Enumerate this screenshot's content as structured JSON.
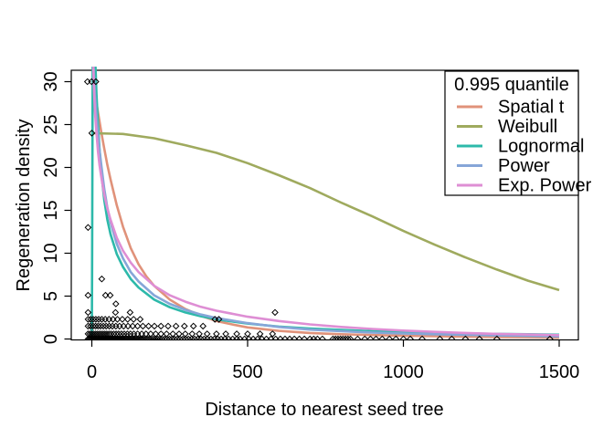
{
  "chart_data": {
    "type": "line",
    "title": "",
    "xlabel": "Distance to nearest seed tree",
    "ylabel": "Regeneration density",
    "xlim": [
      -70,
      1560
    ],
    "ylim": [
      0,
      31.3
    ],
    "x_ticks": [
      "0",
      "500",
      "1000",
      "1500"
    ],
    "y_ticks": [
      "0",
      "5",
      "10",
      "15",
      "20",
      "25",
      "30"
    ],
    "grid": "off",
    "legend": {
      "title": "0.995 quantile",
      "position": "top-right"
    },
    "series": [
      {
        "name": "Spatial t",
        "color": "#E0927A",
        "x": [
          2,
          10,
          20,
          30,
          40,
          50,
          60,
          80,
          100,
          125,
          150,
          175,
          200,
          250,
          300,
          350,
          400,
          450,
          500,
          600,
          700,
          800,
          900,
          1000,
          1100,
          1200,
          1300,
          1400,
          1500
        ],
        "y": [
          30.4,
          28.6,
          26.4,
          24.2,
          22.2,
          20.3,
          18.6,
          15.6,
          13.1,
          10.6,
          8.7,
          7.3,
          6.2,
          4.6,
          3.5,
          2.7,
          2.1,
          1.7,
          1.35,
          0.95,
          0.7,
          0.55,
          0.46,
          0.38,
          0.32,
          0.27,
          0.23,
          0.2,
          0.17
        ]
      },
      {
        "name": "Weibull",
        "color": "#9FAA5E",
        "x": [
          0,
          100,
          200,
          300,
          400,
          500,
          600,
          700,
          800,
          900,
          1000,
          1100,
          1200,
          1300,
          1400,
          1500
        ],
        "y": [
          24,
          23.9,
          23.4,
          22.6,
          21.7,
          20.5,
          19.1,
          17.6,
          15.9,
          14.3,
          12.6,
          11.0,
          9.5,
          8.1,
          6.8,
          5.7
        ]
      },
      {
        "name": "Lognormal",
        "color": "#2DB9AA",
        "x": [
          0,
          1,
          3,
          8,
          12,
          15,
          20,
          25,
          30,
          40,
          50,
          60,
          80,
          100,
          125,
          150,
          200,
          250,
          300,
          350,
          400,
          500,
          600,
          700,
          800,
          900,
          1000,
          1100,
          1200,
          1300,
          1400,
          1500
        ],
        "y": [
          0,
          8,
          34,
          34.5,
          31.5,
          28.5,
          25,
          22,
          19.6,
          16.2,
          13.9,
          12.2,
          9.9,
          8.4,
          7.0,
          6.0,
          4.6,
          3.7,
          3.1,
          2.65,
          2.3,
          1.8,
          1.45,
          1.22,
          1.05,
          0.92,
          0.8,
          0.72,
          0.65,
          0.6,
          0.55,
          0.5
        ]
      },
      {
        "name": "Power",
        "color": "#86A6D8",
        "x": [
          1,
          3,
          6,
          10,
          15,
          20,
          25,
          30,
          40,
          50,
          60,
          80,
          100,
          125,
          150,
          200,
          250,
          300,
          350,
          400,
          500,
          600,
          700,
          800,
          900,
          1000,
          1100,
          1200,
          1300,
          1400,
          1500
        ],
        "y": [
          40,
          35,
          31.5,
          28.5,
          26,
          23.8,
          22,
          20.4,
          17.5,
          15.3,
          13.6,
          11.1,
          9.4,
          7.8,
          6.7,
          5.1,
          4.1,
          3.4,
          2.85,
          2.45,
          1.85,
          1.4,
          1.1,
          0.9,
          0.76,
          0.64,
          0.55,
          0.48,
          0.42,
          0.36,
          0.3
        ]
      },
      {
        "name": "Exp. Power",
        "color": "#DE8ED4",
        "x": [
          1,
          3,
          6,
          10,
          15,
          20,
          25,
          30,
          40,
          50,
          60,
          80,
          100,
          125,
          150,
          200,
          250,
          300,
          350,
          400,
          500,
          600,
          700,
          800,
          900,
          1000,
          1100,
          1200,
          1300,
          1400,
          1500
        ],
        "y": [
          41,
          35,
          30,
          26.5,
          24,
          21.8,
          20.2,
          19,
          16.8,
          15.2,
          13.9,
          11.8,
          10.3,
          8.9,
          7.8,
          6.2,
          5.1,
          4.35,
          3.75,
          3.3,
          2.6,
          2.1,
          1.7,
          1.4,
          1.17,
          0.98,
          0.83,
          0.7,
          0.6,
          0.52,
          0.45
        ]
      }
    ],
    "scatter": {
      "marker": "open-diamond",
      "color": "#000000",
      "rows": [
        {
          "y": 0,
          "x": [
            -12,
            -8,
            -4,
            0,
            4,
            8,
            12,
            16,
            20,
            24,
            28,
            32,
            36,
            40,
            44,
            48,
            52,
            56,
            60,
            64,
            68,
            72,
            76,
            80,
            84,
            88,
            92,
            96,
            100,
            105,
            110,
            115,
            120,
            125,
            130,
            135,
            140,
            145,
            150,
            155,
            160,
            166,
            172,
            178,
            184,
            190,
            197,
            204,
            211,
            218,
            225,
            233,
            241,
            249,
            257,
            265,
            274,
            283,
            292,
            301,
            310,
            320,
            330,
            340,
            350,
            360,
            371,
            382,
            393,
            404,
            415,
            427,
            439,
            452,
            465,
            476,
            490,
            504,
            518,
            532,
            546,
            560,
            575,
            590,
            605,
            620,
            635,
            650,
            666,
            682,
            700,
            712,
            724,
            740,
            774,
            782,
            790,
            798,
            806,
            814,
            822,
            830,
            853,
            876,
            894,
            912,
            932,
            955,
            976,
            1000,
            1022,
            1060,
            1117,
            1155,
            1199,
            1244,
            1300,
            1470
          ]
        },
        {
          "y": 0.6,
          "x": [
            -12,
            -6,
            0,
            6,
            12,
            18,
            24,
            30,
            36,
            42,
            48,
            55,
            62,
            70,
            78,
            86,
            95,
            104,
            114,
            124,
            135,
            147,
            160,
            174,
            189,
            205,
            222,
            240,
            260,
            280,
            300,
            322,
            345,
            370,
            400,
            430,
            465,
            500,
            540,
            580
          ]
        },
        {
          "y": 1.5,
          "x": [
            -12,
            -4,
            4,
            12,
            20,
            28,
            37,
            46,
            56,
            66,
            77,
            89,
            102,
            116,
            131,
            147,
            164,
            182,
            201,
            222,
            245,
            270,
            297,
            326,
            357
          ]
        },
        {
          "y": 2.3,
          "x": [
            -12,
            -4,
            4,
            13,
            22,
            32,
            43,
            55,
            68,
            82,
            98,
            115,
            134,
            155,
            395,
            408
          ]
        },
        {
          "y": 3.1,
          "x": [
            -12,
            76,
            123,
            588
          ]
        },
        {
          "y": 4.1,
          "x": [
            77
          ]
        },
        {
          "y": 5.1,
          "x": [
            -12,
            44,
            59
          ]
        },
        {
          "y": 7,
          "x": [
            32
          ]
        },
        {
          "y": 13,
          "x": [
            -12
          ]
        },
        {
          "y": 24,
          "x": [
            0
          ]
        },
        {
          "y": 30,
          "x": [
            -14,
            -1,
            13
          ]
        }
      ]
    }
  }
}
